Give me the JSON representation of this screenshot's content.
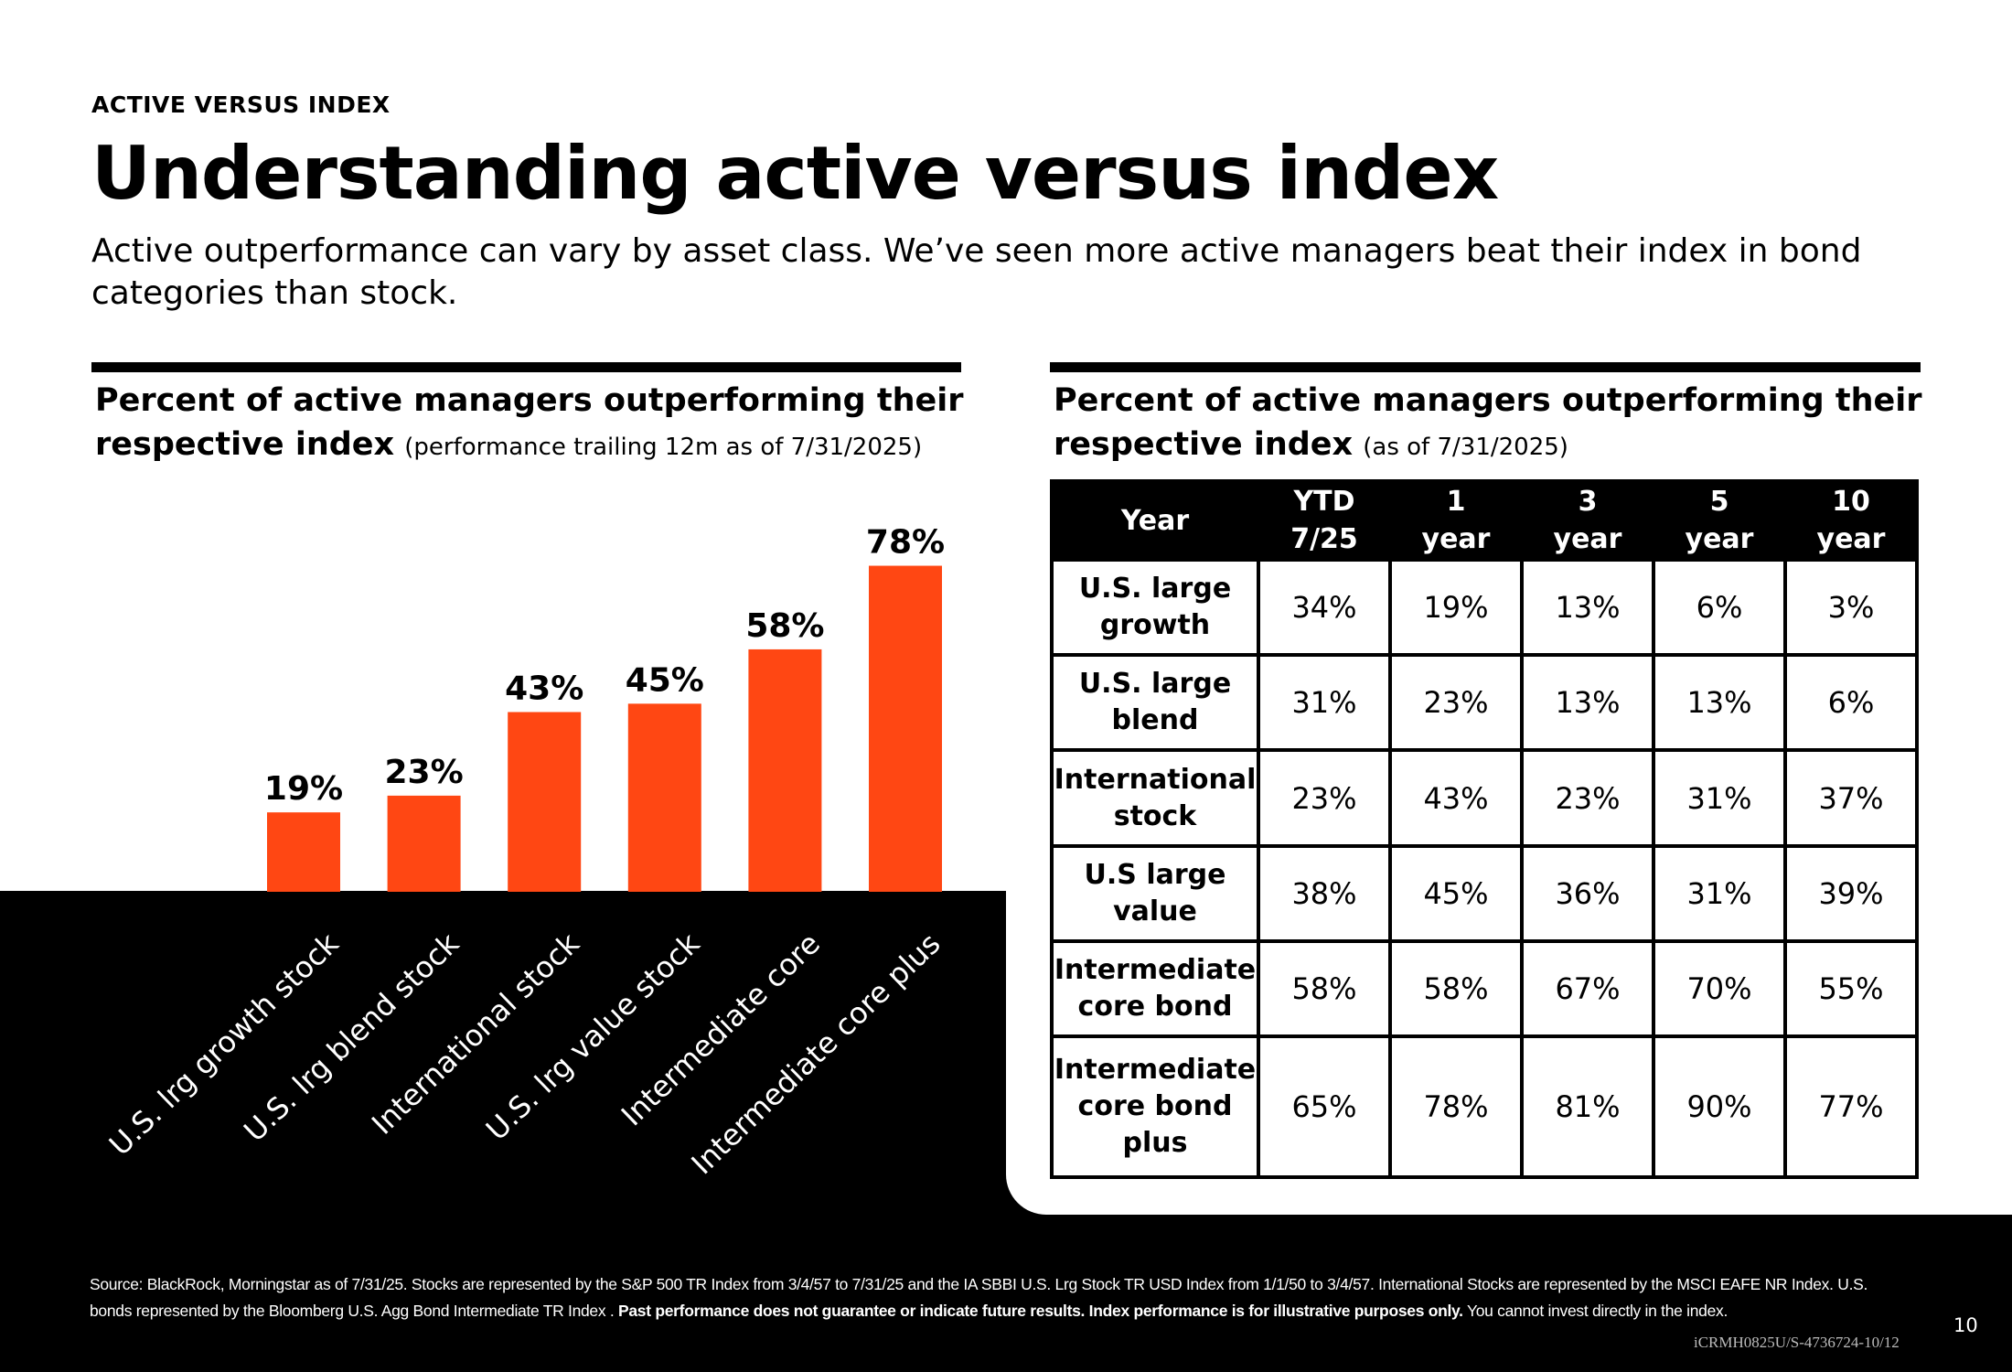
{
  "header": {
    "eyebrow": "ACTIVE VERSUS INDEX",
    "title": "Understanding active versus index",
    "subtitle": "Active outperformance can vary by asset class. We’ve seen more active managers beat their index in bond categories than stock."
  },
  "left_panel": {
    "heading": "Percent of active managers outperforming their respective index",
    "note": "(performance trailing 12m as of 7/31/2025)"
  },
  "right_panel": {
    "heading": "Percent of active managers outperforming their respective index",
    "note": "(as of 7/31/2025)"
  },
  "colors": {
    "bar": "#FF4713",
    "band": "#000000"
  },
  "chart_data": {
    "type": "bar",
    "categories": [
      "U.S. lrg growth stock",
      "U.S. lrg blend stock",
      "International stock",
      "U.S. lrg value stock",
      "Intermediate core",
      "Intermediate core plus"
    ],
    "values": [
      19,
      23,
      43,
      45,
      58,
      78
    ],
    "value_labels": [
      "19%",
      "23%",
      "43%",
      "45%",
      "58%",
      "78%"
    ],
    "title": "Percent of active managers outperforming their respective index",
    "subtitle": "(performance trailing 12m as of 7/31/2025)",
    "xlabel": "",
    "ylabel": "",
    "ylim": [
      0,
      100
    ],
    "grid": false
  },
  "table": {
    "header": [
      "Year",
      "YTD 7/25",
      "1 year",
      "3 year",
      "5 year",
      "10 year"
    ],
    "rows": [
      {
        "label": "U.S. large growth",
        "values": [
          "34%",
          "19%",
          "13%",
          "6%",
          "3%"
        ]
      },
      {
        "label": "U.S. large blend",
        "values": [
          "31%",
          "23%",
          "13%",
          "13%",
          "6%"
        ]
      },
      {
        "label": "International stock",
        "values": [
          "23%",
          "43%",
          "23%",
          "31%",
          "37%"
        ]
      },
      {
        "label": "U.S large value",
        "values": [
          "38%",
          "45%",
          "36%",
          "31%",
          "39%"
        ]
      },
      {
        "label": "Intermediate core bond",
        "values": [
          "58%",
          "58%",
          "67%",
          "70%",
          "55%"
        ]
      },
      {
        "label": "Intermediate core bond plus",
        "values": [
          "65%",
          "78%",
          "81%",
          "90%",
          "77%"
        ]
      }
    ]
  },
  "footer": {
    "source": "Source: BlackRock, Morningstar as of 7/31/25. Stocks are represented by the S&P 500 TR Index from 3/4/57 to 7/31/25 and the IA SBBI U.S. Lrg Stock TR USD Index from 1/1/50 to 3/4/57. International Stocks are represented by the MSCI EAFE NR Index. U.S. bonds represented by the Bloomberg U.S. Agg Bond Intermediate TR Index .",
    "disclaimer": "Past performance does not guarantee or indicate future results. Index performance is for illustrative purposes only.",
    "tail": "You cannot invest directly in the index.",
    "page_number": "10",
    "doc_code": "iCRMH0825U/S-4736724-10/12"
  }
}
